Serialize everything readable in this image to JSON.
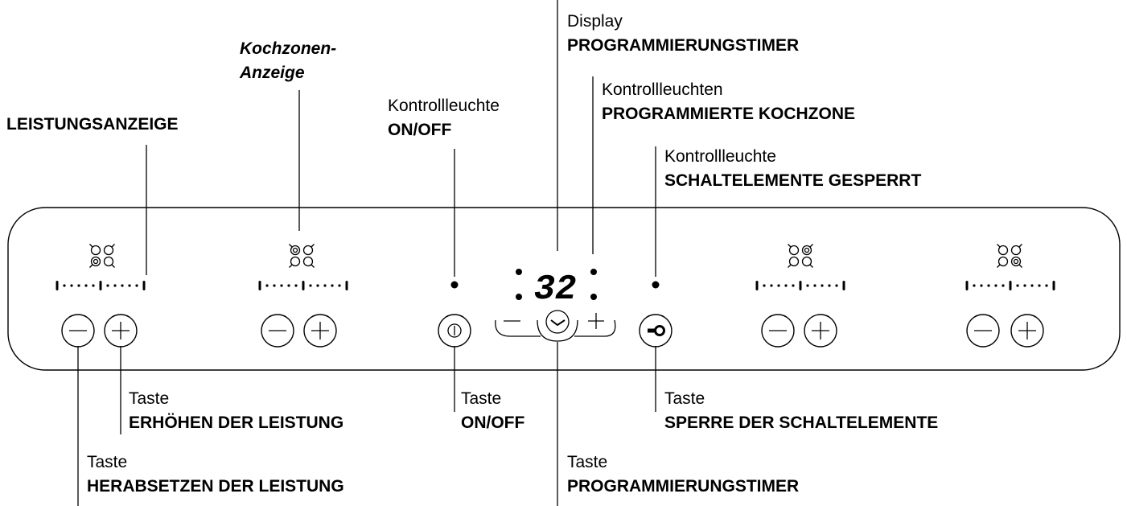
{
  "labels": {
    "leistungsanzeige": {
      "title": "LEISTUNGSANZEIGE"
    },
    "kochzonen_anzeige": {
      "line1": "Kochzonen-",
      "line2": "Anzeige"
    },
    "kontrollleuchte_onoff": {
      "small": "Kontrollleuchte",
      "title": "ON/OFF"
    },
    "display_timer": {
      "small": "Display",
      "title": "PROGRAMMIERUNGSTIMER"
    },
    "kontrollleuchten_kochzone": {
      "small": "Kontrollleuchten",
      "title": "PROGRAMMIERTE KOCHZONE"
    },
    "kontrollleuchte_gesperrt": {
      "small": "Kontrollleuchte",
      "title": "SCHALTELEMENTE GESPERRT"
    },
    "taste_erhoehen": {
      "small": "Taste",
      "title": "ERHÖHEN DER LEISTUNG"
    },
    "taste_onoff": {
      "small": "Taste",
      "title": "ON/OFF"
    },
    "taste_sperre": {
      "small": "Taste",
      "title": "SPERRE DER SCHALTELEMENTE"
    },
    "taste_herabsetzen": {
      "small": "Taste",
      "title": "HERABSETZEN DER LEISTUNG"
    },
    "taste_timer": {
      "small": "Taste",
      "title": "PROGRAMMIERUNGSTIMER"
    }
  },
  "panel": {
    "display_value": "32",
    "zones": [
      {
        "active_zone": "bottom-left"
      },
      {
        "active_zone": "top-left"
      },
      {
        "active_zone": "top-right"
      },
      {
        "active_zone": "bottom-right"
      }
    ],
    "icons": [
      "minus-icon",
      "plus-icon",
      "power-icon",
      "clock-icon",
      "key-icon"
    ]
  }
}
